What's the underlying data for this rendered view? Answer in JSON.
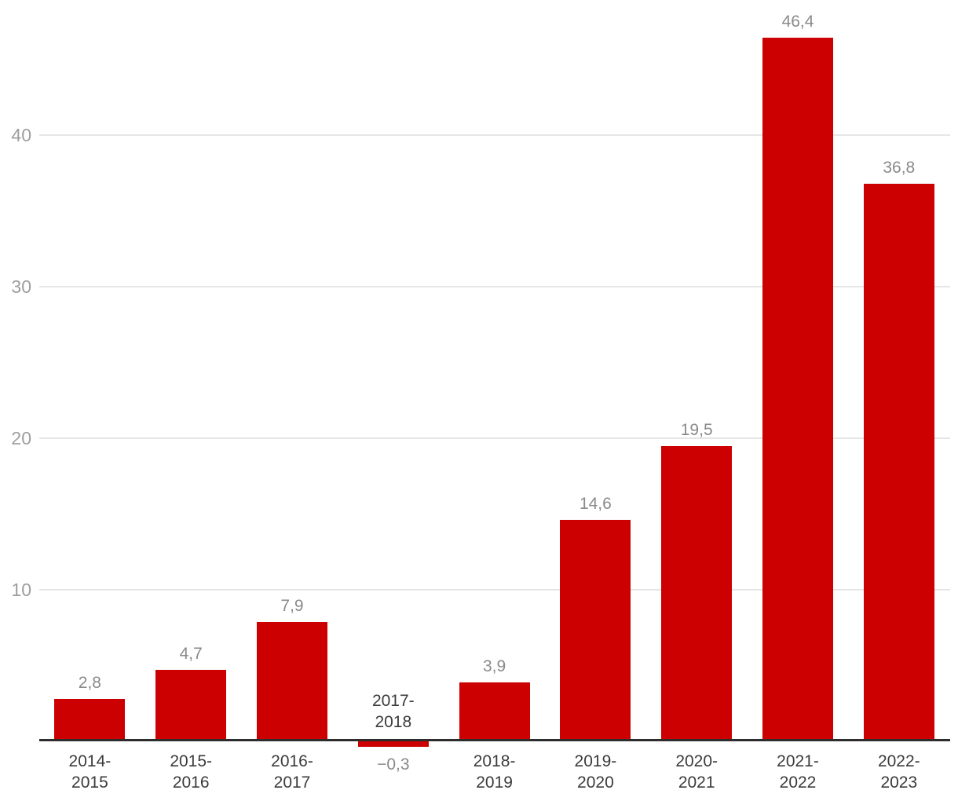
{
  "chart_data": {
    "type": "bar",
    "title": "",
    "xlabel": "",
    "ylabel": "",
    "categories": [
      "2014-2015",
      "2015-2016",
      "2016-2017",
      "2017-2018",
      "2018-2019",
      "2019-2020",
      "2020-2021",
      "2021-2022",
      "2022-2023"
    ],
    "category_lines": [
      [
        "2014-",
        "2015"
      ],
      [
        "2015-",
        "2016"
      ],
      [
        "2016-",
        "2017"
      ],
      [
        "2017-",
        "2018"
      ],
      [
        "2018-",
        "2019"
      ],
      [
        "2019-",
        "2020"
      ],
      [
        "2020-",
        "2021"
      ],
      [
        "2021-",
        "2022"
      ],
      [
        "2022-",
        "2023"
      ]
    ],
    "values": [
      2.8,
      4.7,
      7.9,
      -0.3,
      3.9,
      14.6,
      19.5,
      46.4,
      36.8
    ],
    "value_labels": [
      "2,8",
      "4,7",
      "7,9",
      "−0,3",
      "3,9",
      "14,6",
      "19,5",
      "46,4",
      "36,8"
    ],
    "yticks": [
      10,
      20,
      30,
      40
    ],
    "ylim": [
      -0.5,
      48.5
    ],
    "grid": true,
    "legend": false,
    "decimal_separator": ","
  },
  "colors": {
    "bar": "#cc0000",
    "grid": "#e6e6e6",
    "axis": "#2d2d2d",
    "tick-label": "#9e9e9e",
    "value-label": "#8a8a8a",
    "category-label": "#3b3b3b",
    "background": "#ffffff"
  }
}
